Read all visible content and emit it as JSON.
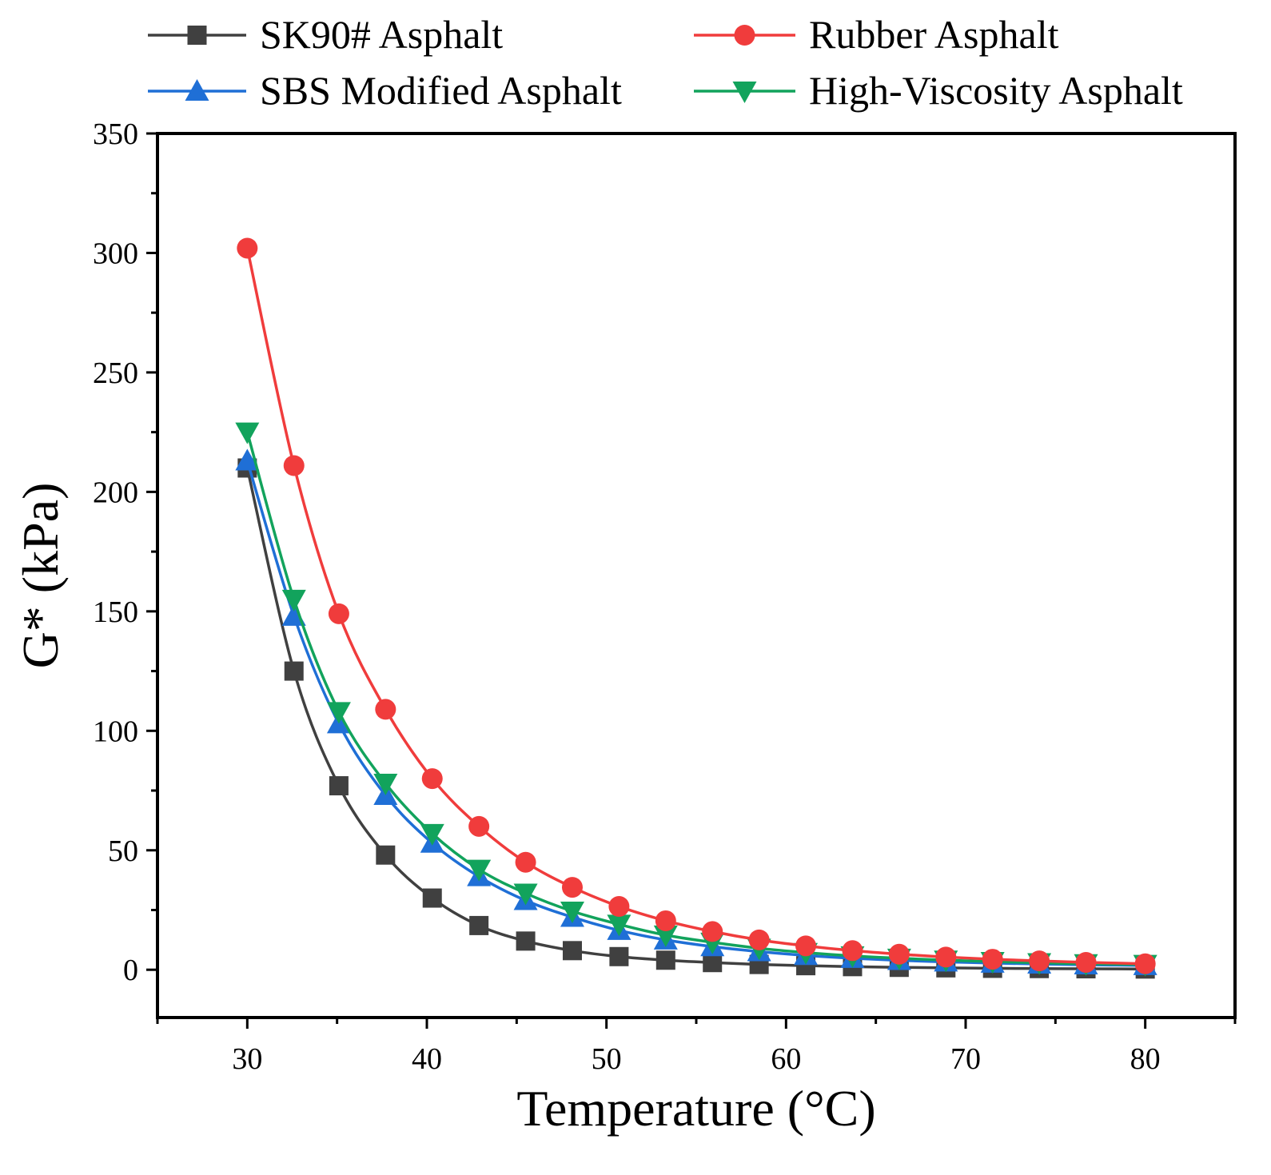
{
  "chart_data": {
    "type": "line",
    "title": "",
    "xlabel": "Temperature (°C)",
    "ylabel": "G* (kPa)",
    "xlim": [
      25,
      85
    ],
    "ylim": [
      -20,
      350
    ],
    "xticks": [
      30,
      40,
      50,
      60,
      70,
      80
    ],
    "yticks": [
      0,
      50,
      100,
      150,
      200,
      250,
      300,
      350
    ],
    "x": [
      30,
      32.6,
      35.1,
      37.7,
      40.3,
      42.9,
      45.5,
      48.1,
      50.7,
      53.3,
      55.9,
      58.5,
      61.1,
      63.7,
      66.3,
      68.9,
      71.5,
      74.1,
      76.7,
      80
    ],
    "legend_position": "top",
    "series": [
      {
        "name": "SK90# Asphalt",
        "color": "#404040",
        "marker": "square",
        "values": [
          210,
          125,
          77,
          48,
          30,
          18.5,
          12,
          8,
          5.5,
          4,
          3,
          2.2,
          1.7,
          1.3,
          1,
          0.8,
          0.6,
          0.5,
          0.4,
          0.3
        ]
      },
      {
        "name": "Rubber Asphalt",
        "color": "#f03c3c",
        "marker": "circle",
        "values": [
          302,
          211,
          149,
          109,
          80,
          60,
          45,
          34.5,
          26.5,
          20.5,
          16,
          12.5,
          10,
          8,
          6.5,
          5.3,
          4.4,
          3.7,
          3.1,
          2.5
        ]
      },
      {
        "name": "SBS Modified Asphalt",
        "color": "#1f6fd6",
        "marker": "triangle-up",
        "values": [
          213,
          148,
          103,
          73,
          53,
          39,
          29,
          22,
          16.5,
          12.5,
          9.7,
          7.6,
          6,
          4.8,
          3.9,
          3.3,
          2.8,
          2.4,
          2.1,
          1.8
        ]
      },
      {
        "name": "High-Viscosity Asphalt",
        "color": "#12a35c",
        "marker": "triangle-down",
        "values": [
          225,
          155,
          108,
          78,
          57,
          42,
          32,
          24.5,
          19,
          14.5,
          11.5,
          9,
          7.2,
          5.8,
          4.8,
          4,
          3.4,
          2.9,
          2.5,
          2.2
        ]
      }
    ]
  }
}
